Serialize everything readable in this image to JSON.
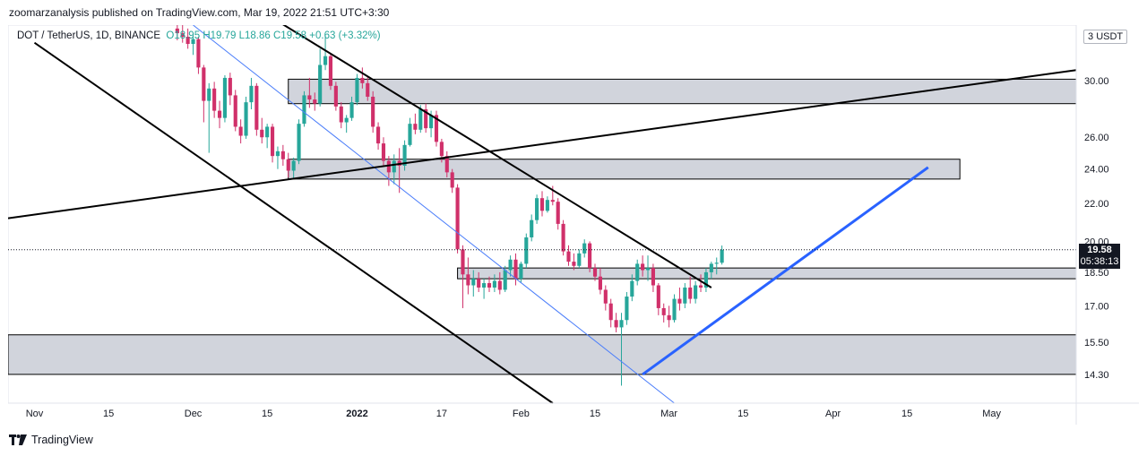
{
  "publisher_line": "zoomarzanalysis published on TradingView.com, Mar 19, 2022 21:51 UTC+3:30",
  "legend": {
    "symbol": "DOT / TetherUS, 1D, BINANCE",
    "open": "O18.95",
    "high": "H19.79",
    "low": "L18.86",
    "close": "C19.58",
    "change": "+0.63 (+3.32%)"
  },
  "currency_button": "USDT",
  "currency_prefix": "3",
  "last_price": {
    "value": "19.58",
    "countdown": "05:38:13"
  },
  "footer_brand": "TradingView",
  "colors": {
    "up": "#26a69a",
    "down": "#d0306a",
    "zone": "#d1d4dc",
    "trend": "#2962ff",
    "line": "#000000",
    "channel_mid": "#4a7dfa"
  },
  "chart_data": {
    "type": "candlestick",
    "title": "DOT / TetherUS, 1D, BINANCE",
    "yscale": "log",
    "ylim": [
      13.3,
      34.5
    ],
    "xlim": [
      "2021-10-27",
      "2022-05-17"
    ],
    "y_ticks": [
      "30.00",
      "26.00",
      "24.00",
      "22.00",
      "20.00",
      "18.50",
      "17.00",
      "15.50",
      "14.30"
    ],
    "x_ticks": [
      {
        "label": "Nov",
        "date": "2021-11-01"
      },
      {
        "label": "15",
        "date": "2021-11-15"
      },
      {
        "label": "Dec",
        "date": "2021-12-01"
      },
      {
        "label": "15",
        "date": "2021-12-15"
      },
      {
        "label": "2022",
        "date": "2022-01-01"
      },
      {
        "label": "17",
        "date": "2022-01-17"
      },
      {
        "label": "Feb",
        "date": "2022-02-01"
      },
      {
        "label": "15",
        "date": "2022-02-15"
      },
      {
        "label": "Mar",
        "date": "2022-03-01"
      },
      {
        "label": "15",
        "date": "2022-03-15"
      },
      {
        "label": "Apr",
        "date": "2022-04-01"
      },
      {
        "label": "15",
        "date": "2022-04-15"
      },
      {
        "label": "May",
        "date": "2022-05-01"
      }
    ],
    "candles_start": "2021-11-28",
    "candles": [
      [
        34.2,
        35.0,
        33.2,
        33.8
      ],
      [
        33.8,
        34.5,
        33.0,
        33.5
      ],
      [
        33.5,
        34.2,
        32.5,
        32.9
      ],
      [
        32.9,
        33.6,
        32.0,
        33.3
      ],
      [
        33.3,
        33.5,
        30.5,
        31.0
      ],
      [
        31.0,
        31.2,
        27.0,
        28.5
      ],
      [
        28.5,
        29.8,
        25.0,
        29.4
      ],
      [
        29.4,
        29.9,
        27.3,
        27.8
      ],
      [
        27.8,
        28.5,
        26.6,
        27.3
      ],
      [
        27.3,
        30.4,
        27.0,
        30.2
      ],
      [
        30.2,
        30.6,
        28.2,
        28.9
      ],
      [
        28.9,
        29.3,
        26.4,
        26.7
      ],
      [
        26.7,
        27.2,
        25.6,
        26.1
      ],
      [
        26.1,
        28.8,
        25.9,
        28.4
      ],
      [
        28.4,
        30.2,
        27.9,
        29.6
      ],
      [
        29.6,
        29.8,
        26.1,
        26.5
      ],
      [
        26.5,
        27.3,
        25.6,
        26.0
      ],
      [
        26.0,
        26.9,
        25.3,
        26.7
      ],
      [
        26.7,
        26.9,
        24.4,
        24.8
      ],
      [
        24.8,
        25.4,
        24.0,
        25.1
      ],
      [
        25.1,
        25.5,
        24.2,
        24.6
      ],
      [
        24.6,
        25.0,
        23.5,
        23.9
      ],
      [
        23.9,
        24.7,
        23.4,
        24.5
      ],
      [
        24.5,
        27.2,
        24.3,
        26.9
      ],
      [
        26.9,
        29.2,
        26.7,
        28.9
      ],
      [
        28.9,
        30.2,
        28.0,
        28.6
      ],
      [
        28.6,
        29.1,
        27.8,
        28.3
      ],
      [
        28.3,
        32.5,
        28.1,
        31.2
      ],
      [
        31.2,
        33.6,
        30.8,
        31.9
      ],
      [
        31.9,
        32.1,
        29.3,
        29.6
      ],
      [
        29.6,
        29.9,
        27.8,
        28.1
      ],
      [
        28.1,
        28.4,
        26.6,
        27.0
      ],
      [
        27.0,
        27.5,
        26.3,
        27.3
      ],
      [
        27.3,
        28.8,
        27.1,
        28.4
      ],
      [
        28.4,
        30.5,
        28.2,
        30.2
      ],
      [
        30.2,
        31.0,
        29.4,
        29.8
      ],
      [
        29.8,
        30.3,
        28.5,
        28.8
      ],
      [
        28.8,
        29.2,
        26.3,
        26.7
      ],
      [
        26.7,
        27.0,
        25.2,
        25.6
      ],
      [
        25.6,
        26.0,
        24.2,
        24.5
      ],
      [
        24.5,
        24.8,
        23.0,
        23.8
      ],
      [
        23.8,
        24.9,
        23.1,
        24.5
      ],
      [
        24.5,
        25.3,
        22.6,
        24.2
      ],
      [
        24.2,
        25.8,
        23.9,
        25.5
      ],
      [
        25.5,
        27.3,
        25.4,
        26.9
      ],
      [
        26.9,
        27.6,
        26.2,
        26.5
      ],
      [
        26.5,
        28.2,
        26.3,
        27.9
      ],
      [
        27.9,
        28.3,
        26.3,
        26.6
      ],
      [
        26.6,
        27.8,
        26.0,
        27.5
      ],
      [
        27.5,
        27.8,
        25.4,
        25.7
      ],
      [
        25.7,
        25.9,
        24.4,
        24.8
      ],
      [
        24.8,
        25.1,
        23.5,
        23.8
      ],
      [
        23.8,
        24.0,
        22.6,
        22.9
      ],
      [
        22.9,
        23.1,
        19.4,
        19.6
      ],
      [
        19.6,
        19.8,
        16.9,
        18.4
      ],
      [
        18.4,
        19.2,
        17.5,
        17.9
      ],
      [
        17.9,
        18.6,
        17.4,
        18.2
      ],
      [
        18.2,
        18.5,
        17.6,
        17.8
      ],
      [
        17.8,
        18.2,
        17.3,
        18.0
      ],
      [
        18.0,
        18.3,
        17.6,
        17.8
      ],
      [
        17.8,
        18.4,
        17.6,
        18.1
      ],
      [
        18.1,
        18.5,
        17.5,
        17.7
      ],
      [
        17.7,
        18.8,
        17.6,
        18.6
      ],
      [
        18.6,
        19.3,
        18.3,
        19.1
      ],
      [
        19.1,
        19.4,
        17.9,
        18.2
      ],
      [
        18.2,
        19.0,
        18.0,
        18.9
      ],
      [
        18.9,
        20.4,
        18.7,
        20.2
      ],
      [
        20.2,
        21.4,
        20.0,
        21.1
      ],
      [
        21.1,
        22.5,
        20.9,
        22.3
      ],
      [
        22.3,
        22.7,
        21.3,
        21.6
      ],
      [
        21.6,
        22.4,
        21.5,
        22.2
      ],
      [
        22.2,
        23.0,
        21.9,
        22.1
      ],
      [
        22.1,
        22.3,
        20.6,
        20.9
      ],
      [
        20.9,
        21.1,
        19.3,
        19.5
      ],
      [
        19.5,
        19.8,
        18.8,
        19.0
      ],
      [
        19.0,
        19.4,
        18.6,
        18.8
      ],
      [
        18.8,
        19.6,
        18.7,
        19.4
      ],
      [
        19.4,
        20.1,
        19.2,
        19.9
      ],
      [
        19.9,
        20.0,
        18.5,
        18.7
      ],
      [
        18.7,
        18.9,
        18.1,
        18.3
      ],
      [
        18.3,
        18.7,
        17.5,
        17.7
      ],
      [
        17.7,
        17.9,
        16.8,
        17.1
      ],
      [
        17.1,
        17.3,
        16.1,
        16.4
      ],
      [
        16.4,
        16.7,
        15.9,
        16.1
      ],
      [
        16.1,
        16.7,
        13.9,
        16.4
      ],
      [
        16.4,
        17.6,
        16.2,
        17.4
      ],
      [
        17.4,
        18.4,
        17.2,
        18.1
      ],
      [
        18.1,
        19.1,
        17.9,
        18.9
      ],
      [
        18.9,
        19.3,
        18.3,
        18.6
      ],
      [
        18.6,
        19.3,
        18.1,
        18.7
      ],
      [
        18.7,
        18.9,
        17.6,
        17.9
      ],
      [
        17.9,
        18.0,
        16.6,
        16.9
      ],
      [
        16.9,
        17.1,
        16.3,
        16.6
      ],
      [
        16.6,
        17.0,
        16.1,
        16.4
      ],
      [
        16.4,
        17.5,
        16.3,
        17.3
      ],
      [
        17.3,
        17.8,
        16.8,
        17.1
      ],
      [
        17.1,
        18.0,
        16.9,
        17.8
      ],
      [
        17.8,
        18.3,
        17.1,
        17.3
      ],
      [
        17.3,
        18.1,
        17.1,
        17.9
      ],
      [
        17.9,
        18.4,
        17.6,
        17.8
      ],
      [
        17.8,
        18.7,
        17.6,
        18.5
      ],
      [
        18.5,
        19.0,
        18.2,
        18.9
      ],
      [
        18.9,
        19.2,
        18.4,
        18.95
      ],
      [
        18.95,
        19.79,
        18.86,
        19.58
      ]
    ],
    "zones": [
      {
        "name": "supply-zone-upper",
        "from": "2021-12-19",
        "to": "2022-05-17",
        "low": 28.3,
        "high": 30.1
      },
      {
        "name": "supply-zone-middle",
        "from": "2021-12-19",
        "to": "2022-04-25",
        "low": 23.4,
        "high": 24.6
      },
      {
        "name": "pivot-zone",
        "from": "2022-01-20",
        "to": "2022-05-17",
        "low": 18.2,
        "high": 18.7
      },
      {
        "name": "demand-zone",
        "from": "2021-10-27",
        "to": "2022-05-17",
        "low": 14.3,
        "high": 15.8
      }
    ],
    "lines": [
      {
        "name": "channel-lower-line",
        "color": "black",
        "width": 2,
        "points": [
          [
            "2021-11-01",
            33.0
          ],
          [
            "2022-02-07",
            13.3
          ]
        ]
      },
      {
        "name": "channel-upper-line",
        "color": "black",
        "width": 2,
        "points": [
          [
            "2021-12-13",
            36.0
          ],
          [
            "2022-03-09",
            17.8
          ]
        ]
      },
      {
        "name": "channel-mid-line",
        "color": "blue-thin",
        "width": 1,
        "points": [
          [
            "2021-12-01",
            34.5
          ],
          [
            "2022-03-02",
            13.3
          ]
        ]
      },
      {
        "name": "rising-long-line",
        "color": "black",
        "width": 2,
        "points": [
          [
            "2021-10-27",
            21.2
          ],
          [
            "2022-05-17",
            30.8
          ]
        ]
      },
      {
        "name": "blue-support-line",
        "color": "blue",
        "width": 3,
        "points": [
          [
            "2022-02-24",
            14.3
          ],
          [
            "2022-04-19",
            24.1
          ]
        ]
      }
    ]
  }
}
